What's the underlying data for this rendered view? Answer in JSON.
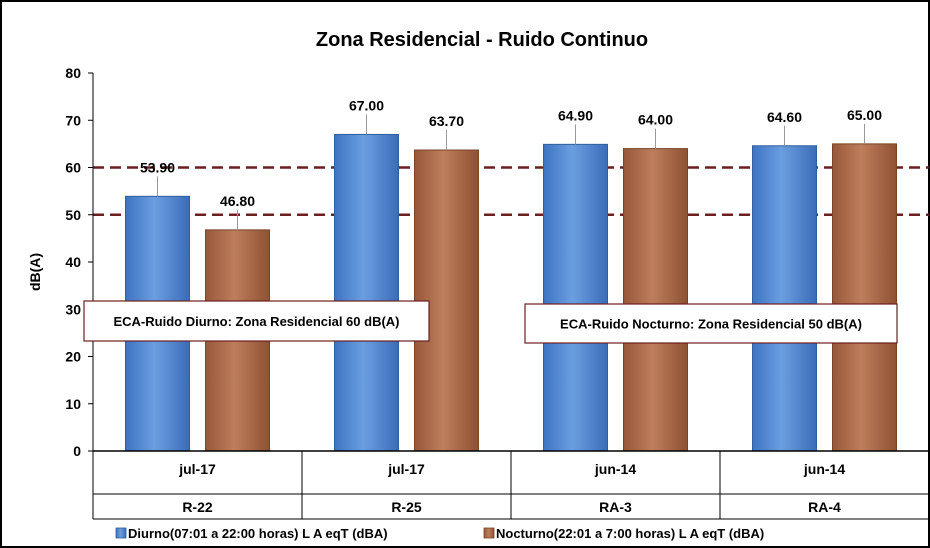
{
  "chart_data": {
    "type": "bar",
    "title": "Zona Residencial - Ruido Continuo",
    "ylabel": "dB(A)",
    "ylim": [
      0,
      80
    ],
    "yticks": [
      0,
      10,
      20,
      30,
      40,
      50,
      60,
      70,
      80
    ],
    "grid": false,
    "legend_position": "bottom",
    "categories": [
      {
        "period": "jul-17",
        "station": "R-22"
      },
      {
        "period": "jul-17",
        "station": "R-25"
      },
      {
        "period": "jun-14",
        "station": "RA-3"
      },
      {
        "period": "jun-14",
        "station": "RA-4"
      }
    ],
    "series": [
      {
        "name": "Diurno(07:01 a 22:00 horas) L A eqT (dBA)",
        "color": "#4f86d1",
        "values": [
          53.9,
          67.0,
          64.9,
          64.6
        ],
        "labels": [
          "53.90",
          "67.00",
          "64.90",
          "64.60"
        ]
      },
      {
        "name": "Nocturno(22:01 a 7:00 horas) L A eqT (dBA)",
        "color": "#a8694a",
        "values": [
          46.8,
          63.7,
          64.0,
          65.0
        ],
        "labels": [
          "46.80",
          "63.70",
          "64.00",
          "65.00"
        ]
      }
    ],
    "reference_lines": [
      {
        "value": 60,
        "color": "#6b1f1f"
      },
      {
        "value": 50,
        "color": "#6b1f1f"
      }
    ],
    "annotations": [
      {
        "text": "ECA-Ruido Diurno:  Zona Residencial 60 dB(A)"
      },
      {
        "text": "ECA-Ruido Nocturno:  Zona Residencial 50 dB(A)"
      }
    ]
  }
}
